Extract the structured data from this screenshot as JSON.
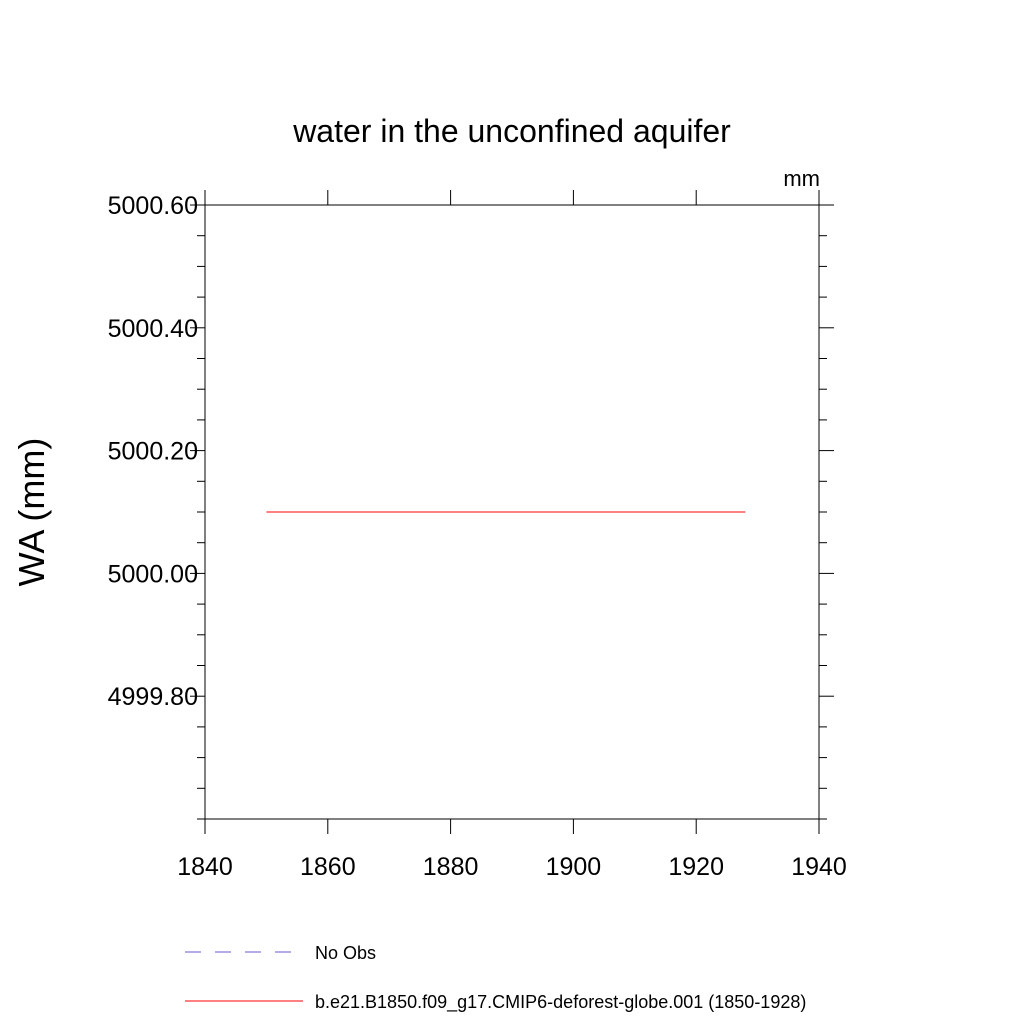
{
  "chart_data": {
    "type": "line",
    "title": "water in the unconfined aquifer",
    "units": "mm",
    "xlabel": "",
    "ylabel": "WA  (mm)",
    "xlim": [
      1840,
      1940
    ],
    "ylim": [
      4999.6,
      5000.6
    ],
    "x_ticks": [
      1840,
      1860,
      1880,
      1900,
      1920,
      1940
    ],
    "x_tick_labels": [
      "1840",
      "1860",
      "1880",
      "1900",
      "1920",
      "1940"
    ],
    "y_ticks": [
      4999.8,
      5000.0,
      5000.2,
      5000.4,
      5000.6
    ],
    "y_tick_labels": [
      "4999.80",
      "5000.00",
      "5000.20",
      "5000.40",
      "5000.60"
    ],
    "grid": false,
    "legend_position": "bottom",
    "series": [
      {
        "name": "No Obs",
        "color": "#6a5acd",
        "dash": "dashed",
        "x": [],
        "y": []
      },
      {
        "name": "b.e21.B1850.f09_g17.CMIP6-deforest-globe.001 (1850-1928)",
        "color": "#ff0000",
        "dash": "solid",
        "x": [
          1850,
          1928
        ],
        "y": [
          5000.1,
          5000.1
        ]
      }
    ]
  }
}
